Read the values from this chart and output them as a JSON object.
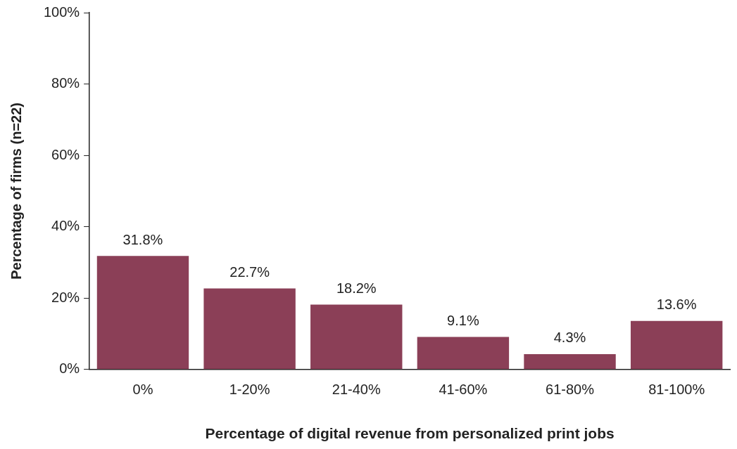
{
  "chart_data": {
    "type": "bar",
    "xlabel": "Percentage of digital revenue from personalized print jobs",
    "ylabel": "Percentage of firms (n=22)",
    "categories": [
      "0%",
      "1-20%",
      "21-40%",
      "41-60%",
      "61-80%",
      "81-100%"
    ],
    "values": [
      31.8,
      22.7,
      18.2,
      9.1,
      4.3,
      13.6
    ],
    "value_labels": [
      "31.8%",
      "22.7%",
      "18.2%",
      "9.1%",
      "4.3%",
      "13.6%"
    ],
    "color": "#8b3f57",
    "ylim": [
      0,
      100
    ],
    "yticks": [
      {
        "value": 0,
        "label": "0%"
      },
      {
        "value": 20,
        "label": "20%"
      },
      {
        "value": 40,
        "label": "40%"
      },
      {
        "value": 60,
        "label": "60%"
      },
      {
        "value": 80,
        "label": "80%"
      },
      {
        "value": 100,
        "label": "100%"
      }
    ],
    "grid": false,
    "legend": false
  }
}
